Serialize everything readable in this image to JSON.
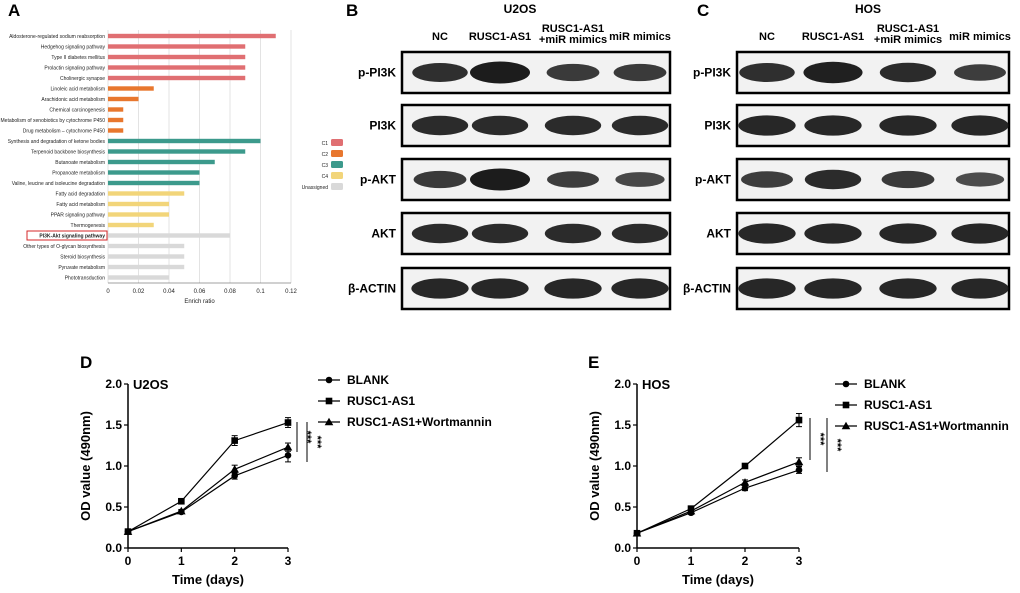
{
  "panels": {
    "A": "A",
    "B": "B",
    "C": "C",
    "D": "D",
    "E": "E"
  },
  "chart_data": [
    {
      "panel": "A",
      "type": "bar",
      "orientation": "horizontal",
      "xlabel": "Enrich ratio",
      "ylabel": "",
      "xlim": [
        0,
        0.12
      ],
      "xticks": [
        "0",
        "0.02",
        "0.04",
        "0.06",
        "0.08",
        "0.1",
        "0.12"
      ],
      "grid": true,
      "legend_position": "right",
      "legend": [
        {
          "name": "C1",
          "color": "#e06f72"
        },
        {
          "name": "C2",
          "color": "#e8772e"
        },
        {
          "name": "C3",
          "color": "#3c9a8c"
        },
        {
          "name": "C4",
          "color": "#f2d57a"
        },
        {
          "name": "Unassigned",
          "color": "#d9d9d9"
        }
      ],
      "highlighted_category": "PI3K-Akt signaling pathway",
      "bars": [
        {
          "label": "Aldosterone-regulated sodium reabsorption",
          "value": 0.11,
          "group": "C1"
        },
        {
          "label": "Hedgehog signaling pathway",
          "value": 0.09,
          "group": "C1"
        },
        {
          "label": "Type II diabetes mellitus",
          "value": 0.09,
          "group": "C1"
        },
        {
          "label": "Prolactin signaling pathway",
          "value": 0.09,
          "group": "C1"
        },
        {
          "label": "Cholinergic synapse",
          "value": 0.09,
          "group": "C1"
        },
        {
          "label": "Linoleic acid metabolism",
          "value": 0.03,
          "group": "C2"
        },
        {
          "label": "Arachidonic acid metabolism",
          "value": 0.02,
          "group": "C2"
        },
        {
          "label": "Chemical carcinogenesis",
          "value": 0.01,
          "group": "C2"
        },
        {
          "label": "Metabolism of xenobiotics by cytochrome P450",
          "value": 0.01,
          "group": "C2"
        },
        {
          "label": "Drug metabolism – cytochrome P450",
          "value": 0.01,
          "group": "C2"
        },
        {
          "label": "Synthesis and degradation of ketone bodies",
          "value": 0.1,
          "group": "C3"
        },
        {
          "label": "Terpenoid backbone biosynthesis",
          "value": 0.09,
          "group": "C3"
        },
        {
          "label": "Butanoate metabolism",
          "value": 0.07,
          "group": "C3"
        },
        {
          "label": "Propanoate metabolism",
          "value": 0.06,
          "group": "C3"
        },
        {
          "label": "Valine, leucine and isoleucine degradation",
          "value": 0.06,
          "group": "C3"
        },
        {
          "label": "Fatty acid degradation",
          "value": 0.05,
          "group": "C4"
        },
        {
          "label": "Fatty acid metabolism",
          "value": 0.04,
          "group": "C4"
        },
        {
          "label": "PPAR signaling pathway",
          "value": 0.04,
          "group": "C4"
        },
        {
          "label": "Thermogenesis",
          "value": 0.03,
          "group": "C4"
        },
        {
          "label": "PI3K-Akt signaling pathway",
          "value": 0.08,
          "group": "Unassigned"
        },
        {
          "label": "Other types of O-glycan biosynthesis",
          "value": 0.05,
          "group": "Unassigned"
        },
        {
          "label": "Steroid biosynthesis",
          "value": 0.05,
          "group": "Unassigned"
        },
        {
          "label": "Pyruvate metabolism",
          "value": 0.05,
          "group": "Unassigned"
        },
        {
          "label": "Phototransduction",
          "value": 0.04,
          "group": "Unassigned"
        }
      ]
    },
    {
      "panel": "D",
      "type": "line",
      "title": "U2OS",
      "xlabel": "Time (days)",
      "ylabel": "OD value (490nm)",
      "xlim": [
        0,
        3
      ],
      "ylim": [
        0,
        2.0
      ],
      "xticks": [
        "0",
        "1",
        "2",
        "3"
      ],
      "yticks": [
        "0.0",
        "0.5",
        "1.0",
        "1.5",
        "2.0"
      ],
      "x": [
        0,
        1,
        2,
        3
      ],
      "legend_position": "right",
      "significance": "***",
      "series": [
        {
          "name": "BLANK",
          "marker": "circle",
          "values": [
            0.2,
            0.44,
            0.88,
            1.13
          ],
          "errors": [
            0,
            0.02,
            0.04,
            0.08
          ]
        },
        {
          "name": "RUSC1-AS1",
          "marker": "square",
          "values": [
            0.2,
            0.57,
            1.31,
            1.53
          ],
          "errors": [
            0,
            0.02,
            0.06,
            0.06
          ]
        },
        {
          "name": "RUSC1-AS1+Wortmannin",
          "marker": "triangle",
          "values": [
            0.2,
            0.45,
            0.96,
            1.23
          ],
          "errors": [
            0,
            0.02,
            0.05,
            0.05
          ]
        }
      ]
    },
    {
      "panel": "E",
      "type": "line",
      "title": "HOS",
      "xlabel": "Time (days)",
      "ylabel": "OD value (490nm)",
      "xlim": [
        0,
        3
      ],
      "ylim": [
        0,
        2.0
      ],
      "xticks": [
        "0",
        "1",
        "2",
        "3"
      ],
      "yticks": [
        "0.0",
        "0.5",
        "1.0",
        "1.5",
        "2.0"
      ],
      "x": [
        0,
        1,
        2,
        3
      ],
      "legend_position": "right",
      "significance": "***",
      "series": [
        {
          "name": "BLANK",
          "marker": "circle",
          "values": [
            0.18,
            0.43,
            0.73,
            0.95
          ],
          "errors": [
            0,
            0.02,
            0.03,
            0.04
          ]
        },
        {
          "name": "RUSC1-AS1",
          "marker": "square",
          "values": [
            0.18,
            0.48,
            1.0,
            1.56
          ],
          "errors": [
            0,
            0.02,
            0.03,
            0.08
          ]
        },
        {
          "name": "RUSC1-AS1+Wortmannin",
          "marker": "triangle",
          "values": [
            0.18,
            0.45,
            0.8,
            1.05
          ],
          "errors": [
            0,
            0.02,
            0.03,
            0.05
          ]
        }
      ]
    }
  ],
  "blots": [
    {
      "panel": "B",
      "cell_line": "U2OS",
      "columns": [
        "NC",
        "RUSC1-AS1",
        "RUSC1-AS1\n+miR mimics",
        "miR mimics"
      ],
      "column_lines": [
        [
          "NC"
        ],
        [
          "RUSC1-AS1"
        ],
        [
          "RUSC1-AS1",
          "+miR mimics"
        ],
        [
          "miR mimics"
        ]
      ],
      "rows": [
        "p-PI3K",
        "PI3K",
        "p-AKT",
        "AKT",
        "β-ACTIN"
      ],
      "band_intensity": [
        [
          0.75,
          1.0,
          0.6,
          0.6
        ],
        [
          0.8,
          0.8,
          0.8,
          0.8
        ],
        [
          0.6,
          1.0,
          0.55,
          0.4
        ],
        [
          0.8,
          0.8,
          0.8,
          0.8
        ],
        [
          0.85,
          0.85,
          0.85,
          0.85
        ]
      ]
    },
    {
      "panel": "C",
      "cell_line": "HOS",
      "columns": [
        "NC",
        "RUSC1-AS1",
        "RUSC1-AS1\n+miR mimics",
        "miR mimics"
      ],
      "column_lines": [
        [
          "NC"
        ],
        [
          "RUSC1-AS1"
        ],
        [
          "RUSC1-AS1",
          "+miR mimics"
        ],
        [
          "miR mimics"
        ]
      ],
      "rows": [
        "p-PI3K",
        "PI3K",
        "p-AKT",
        "AKT",
        "β-ACTIN"
      ],
      "band_intensity": [
        [
          0.75,
          0.95,
          0.8,
          0.55
        ],
        [
          0.85,
          0.85,
          0.85,
          0.85
        ],
        [
          0.55,
          0.8,
          0.6,
          0.35
        ],
        [
          0.85,
          0.85,
          0.85,
          0.85
        ],
        [
          0.85,
          0.85,
          0.85,
          0.85
        ]
      ]
    }
  ],
  "colors": {
    "C1": "#e06f72",
    "C2": "#e8772e",
    "C3": "#3c9a8c",
    "C4": "#f2d57a",
    "Unassigned": "#d9d9d9",
    "highlight_box": "#d62728"
  }
}
